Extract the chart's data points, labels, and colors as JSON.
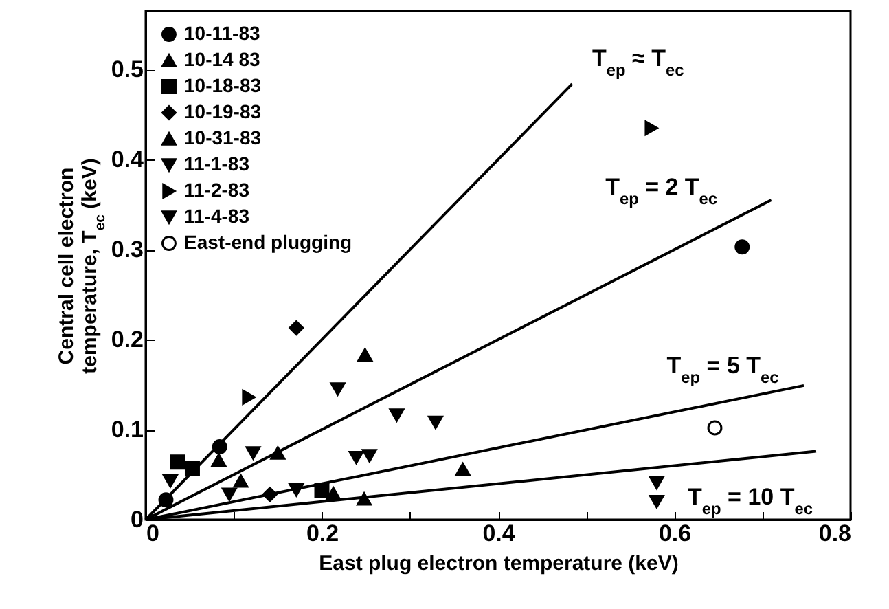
{
  "chart_data": {
    "type": "scatter",
    "xlabel": "East plug electron temperature (keV)",
    "ylabel": "Central cell electron\ntemperature, T$_{ec}$ (keV)",
    "xlim": [
      0,
      0.8
    ],
    "ylim": [
      0,
      0.565
    ],
    "xticks": [
      0,
      {
        "value": 0.1,
        "label": null
      },
      0.2,
      {
        "value": 0.3,
        "label": null
      },
      0.4,
      {
        "value": 0.5,
        "label": null
      },
      0.6,
      {
        "value": 0.7,
        "label": null
      },
      0.8
    ],
    "yticks": [
      0,
      0.1,
      0.2,
      0.3,
      0.4,
      0.5
    ],
    "legend": "top left",
    "grid": false,
    "series": [
      {
        "name": "10-11-83",
        "color": "#000000",
        "marker": "circle",
        "x": [
          0.023,
          0.084,
          0.677
        ],
        "values": [
          0.022,
          0.081,
          0.303
        ]
      },
      {
        "name": "10-14 83",
        "color": "#000000",
        "marker": "triangle",
        "x": [
          0.249,
          0.15,
          0.083
        ],
        "values": [
          0.183,
          0.074,
          0.066
        ]
      },
      {
        "name": "10-18-83",
        "color": "#000000",
        "marker": "square",
        "x": [
          0.036,
          0.053,
          0.2
        ],
        "values": [
          0.064,
          0.057,
          0.032
        ]
      },
      {
        "name": "10-19-83",
        "color": "#000000",
        "marker": "diamond",
        "x": [
          0.171,
          0.141
        ],
        "values": [
          0.213,
          0.028
        ]
      },
      {
        "name": "10-31-83",
        "color": "#000000",
        "marker": "triangle",
        "x": [
          0.108,
          0.213,
          0.248,
          0.36
        ],
        "values": [
          0.043,
          0.029,
          0.023,
          0.056
        ]
      },
      {
        "name": "11-1-83",
        "color": "#000000",
        "marker": "triangle-down",
        "x": [
          0.028,
          0.122,
          0.095,
          0.171,
          0.218
        ],
        "values": [
          0.043,
          0.074,
          0.028,
          0.033,
          0.145
        ]
      },
      {
        "name": "11-2-83",
        "color": "#000000",
        "marker": "triangle-right",
        "x": [
          0.117,
          0.574
        ],
        "values": [
          0.136,
          0.435
        ]
      },
      {
        "name": "11-4-83",
        "color": "#000000",
        "marker": "triangle-down",
        "x": [
          0.285,
          0.329,
          0.239,
          0.254,
          0.58,
          0.58
        ],
        "values": [
          0.116,
          0.108,
          0.069,
          0.071,
          0.041,
          0.02
        ]
      },
      {
        "name": "East-end plugging",
        "color": "#000000",
        "marker": "circle-open",
        "x": [
          0.646
        ],
        "values": [
          0.102
        ]
      },
      {
        "type": "line",
        "color": "#000000",
        "x": [
          0,
          0.484
        ],
        "values": [
          0,
          0.484
        ]
      },
      {
        "type": "line",
        "color": "#000000",
        "x": [
          0,
          0.71
        ],
        "values": [
          0,
          0.355
        ]
      },
      {
        "type": "line",
        "color": "#000000",
        "x": [
          0,
          0.747
        ],
        "values": [
          0,
          0.149
        ]
      },
      {
        "type": "line",
        "color": "#000000",
        "x": [
          0,
          0.761
        ],
        "values": [
          0,
          0.076
        ]
      }
    ],
    "annotations": [
      "T$_{ep}$ ≈ T$_{ec}$",
      "T$_{ep}$ = 2 T$_{ec}$",
      "T$_{ep}$ = 5 T$_{ec}$",
      "T$_{ep}$ = 10 T$_{ec}$"
    ]
  }
}
